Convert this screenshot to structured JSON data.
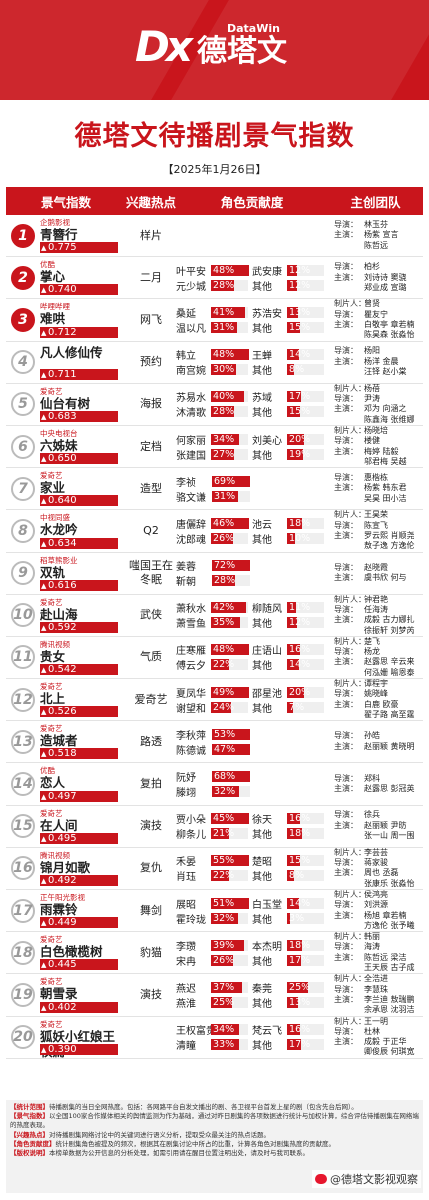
{
  "brand": {
    "logo_en": "DataWin",
    "logo_cn": "德塔文"
  },
  "title": "德塔文待播剧景气指数",
  "date": "【2025年1月26日】",
  "columns": [
    "景气指数",
    "兴趣热点",
    "角色贡献度",
    "主创团队"
  ],
  "team_labels": {
    "director": "导演：",
    "cast": "主演：",
    "producer": "制片人："
  },
  "rows": [
    {
      "rank": "1",
      "platform": "企鹅影视",
      "name": "青簪行",
      "score": "0.775",
      "score_value": 0.775,
      "interest": [
        "样片"
      ],
      "roles": [],
      "director": "林玉芬",
      "cast": [
        "杨紫",
        "宣言"
      ],
      "cast2": [
        "陈哲远"
      ],
      "producer": ""
    },
    {
      "rank": "2",
      "platform": "优酷",
      "name": "掌心",
      "score": "0.740",
      "score_value": 0.74,
      "interest": [
        "二月"
      ],
      "roles": [
        [
          "叶平安",
          "48%",
          48,
          "武安康",
          "12%",
          12
        ],
        [
          "元少城",
          "28%",
          28,
          "其他",
          "12%",
          12
        ]
      ],
      "director": "柏杉",
      "cast": [
        "刘诗诗",
        "窦骁"
      ],
      "cast2": [
        "郑业成",
        "宣璐"
      ],
      "producer": ""
    },
    {
      "rank": "3",
      "platform": "哔哩哔哩",
      "name": "难哄",
      "score": "0.712",
      "score_value": 0.712,
      "interest": [
        "网飞"
      ],
      "roles": [
        [
          "桑延",
          "41%",
          41,
          "苏浩安",
          "13%",
          13
        ],
        [
          "温以凡",
          "31%",
          31,
          "其他",
          "15%",
          15
        ]
      ],
      "director": "瞿友宁",
      "cast": [
        "白敬亭",
        "章若楠"
      ],
      "cast2": [
        "陈昊森",
        "张淼怡"
      ],
      "producer": "曾贤"
    },
    {
      "rank": "4",
      "platform": "",
      "name": "凡人修仙传",
      "score": "0.711",
      "score_value": 0.711,
      "interest": [
        "预约"
      ],
      "roles": [
        [
          "韩立",
          "48%",
          48,
          "王蝉",
          "14%",
          14
        ],
        [
          "南宫婉",
          "30%",
          30,
          "其他",
          "8%",
          8
        ]
      ],
      "director": "杨阳",
      "cast": [
        "杨洋",
        "金晨"
      ],
      "cast2": [
        "汪铎",
        "赵小棠"
      ],
      "producer": ""
    },
    {
      "rank": "5",
      "platform": "爱奇艺",
      "name": "仙台有树",
      "score": "0.683",
      "score_value": 0.683,
      "interest": [
        "海报"
      ],
      "roles": [
        [
          "苏易水",
          "40%",
          40,
          "苏域",
          "17%",
          17
        ],
        [
          "沐清歌",
          "28%",
          28,
          "其他",
          "15%",
          15
        ]
      ],
      "director": "尹涛",
      "cast": [
        "邓为",
        "向涵之"
      ],
      "cast2": [
        "陈鑫海",
        "张维娜"
      ],
      "producer": "杨蓓"
    },
    {
      "rank": "6",
      "platform": "中央电视台",
      "name": "六姊妹",
      "score": "0.650",
      "score_value": 0.65,
      "interest": [
        "定档"
      ],
      "roles": [
        [
          "何家丽",
          "34%",
          34,
          "刘美心",
          "20%",
          20
        ],
        [
          "张建国",
          "27%",
          27,
          "其他",
          "19%",
          19
        ]
      ],
      "director": "楼健",
      "cast": [
        "梅婷",
        "陆毅"
      ],
      "cast2": [
        "邬君梅",
        "吴越"
      ],
      "producer": "杨晓培"
    },
    {
      "rank": "7",
      "platform": "爱奇艺",
      "name": "家业",
      "score": "0.640",
      "score_value": 0.64,
      "interest": [
        "造型"
      ],
      "roles": [
        [
          "李祯",
          "69%",
          69,
          "",
          "",
          0
        ],
        [
          "骆文谦",
          "31%",
          31,
          "",
          "",
          0
        ]
      ],
      "director": "惠楷栋",
      "cast": [
        "杨紫",
        "韩东君"
      ],
      "cast2": [
        "吴昊",
        "田小洁"
      ],
      "producer": ""
    },
    {
      "rank": "8",
      "platform": "中视同盛",
      "name": "水龙吟",
      "score": "0.634",
      "score_value": 0.634,
      "interest": [
        "Q2"
      ],
      "roles": [
        [
          "唐儷辞",
          "46%",
          46,
          "池云",
          "18%",
          18
        ],
        [
          "沈郎魂",
          "26%",
          26,
          "其他",
          "10%",
          10
        ]
      ],
      "director": "陈宣飞",
      "cast": [
        "罗云熙",
        "肖顺尧"
      ],
      "cast2": [
        "敖子逸",
        "方逸伦"
      ],
      "producer": "王昊荣"
    },
    {
      "rank": "9",
      "platform": "稻草熊影业",
      "name": "双轨",
      "score": "0.616",
      "score_value": 0.616,
      "interest": [
        "嗤国王在",
        "冬眠"
      ],
      "roles": [
        [
          "姜蓉",
          "72%",
          72,
          "",
          "",
          0
        ],
        [
          "靳朝",
          "28%",
          28,
          "",
          "",
          0
        ]
      ],
      "director": "赵晓霞",
      "cast": [
        "虞书欣",
        "何与"
      ],
      "cast2": [],
      "producer": ""
    },
    {
      "rank": "10",
      "platform": "爱奇艺",
      "name": "赴山海",
      "score": "0.592",
      "score_value": 0.592,
      "interest": [
        "武侠"
      ],
      "roles": [
        [
          "萧秋水",
          "42%",
          42,
          "柳随风",
          "11%",
          11
        ],
        [
          "萧雪鱼",
          "35%",
          35,
          "其他",
          "12%",
          12
        ]
      ],
      "director": "任海涛",
      "cast": [
        "成毅",
        "古力娜扎"
      ],
      "cast2": [
        "徐振轩",
        "刘梦芮"
      ],
      "producer": "钟君艳"
    },
    {
      "rank": "11",
      "platform": "腾讯视频",
      "name": "贵女",
      "score": "0.542",
      "score_value": 0.542,
      "interest": [
        "气质"
      ],
      "roles": [
        [
          "庄寒雁",
          "48%",
          48,
          "庄语山",
          "16%",
          16
        ],
        [
          "傅云夕",
          "22%",
          22,
          "其他",
          "14%",
          14
        ]
      ],
      "director": "杨龙",
      "cast": [
        "赵露思",
        "辛云来"
      ],
      "cast2": [
        "何泓姗",
        "喻恩泰"
      ],
      "producer": "楚飞"
    },
    {
      "rank": "12",
      "platform": "爱奇艺",
      "name": "北上",
      "score": "0.526",
      "score_value": 0.526,
      "interest": [
        "爱奇艺"
      ],
      "roles": [
        [
          "夏凤华",
          "49%",
          49,
          "邵星池",
          "20%",
          20
        ],
        [
          "谢望和",
          "24%",
          24,
          "其他",
          "7%",
          7
        ]
      ],
      "director": "姚晓峰",
      "cast": [
        "白鹿",
        "欧豪"
      ],
      "cast2": [
        "翟子路",
        "高至霆"
      ],
      "producer": "谭程宇"
    },
    {
      "rank": "13",
      "platform": "爱奇艺",
      "name": "造城者",
      "score": "0.518",
      "score_value": 0.518,
      "interest": [
        "路透"
      ],
      "roles": [
        [
          "李秋萍",
          "53%",
          53,
          "",
          "",
          0
        ],
        [
          "陈德诚",
          "47%",
          47,
          "",
          "",
          0
        ]
      ],
      "director": "孙皓",
      "cast": [
        "赵丽颖",
        "黄晓明"
      ],
      "cast2": [],
      "producer": ""
    },
    {
      "rank": "14",
      "platform": "优酷",
      "name": "恋人",
      "score": "0.497",
      "score_value": 0.497,
      "interest": [
        "复拍"
      ],
      "roles": [
        [
          "阮妤",
          "68%",
          68,
          "",
          "",
          0
        ],
        [
          "滕翊",
          "32%",
          32,
          "",
          "",
          0
        ]
      ],
      "director": "郑科",
      "cast": [
        "赵露思",
        "彭冠英"
      ],
      "cast2": [],
      "producer": ""
    },
    {
      "rank": "15",
      "platform": "爱奇艺",
      "name": "在人间",
      "score": "0.495",
      "score_value": 0.495,
      "interest": [
        "演技"
      ],
      "roles": [
        [
          "贾小朵",
          "45%",
          45,
          "徐天",
          "16%",
          16
        ],
        [
          "柳条儿",
          "21%",
          21,
          "其他",
          "18%",
          18
        ]
      ],
      "director": "徐兵",
      "cast": [
        "赵丽颖",
        "尹昉"
      ],
      "cast2": [
        "张一山",
        "周一围"
      ],
      "producer": ""
    },
    {
      "rank": "16",
      "platform": "腾讯视频",
      "name": "锦月如歌",
      "score": "0.492",
      "score_value": 0.492,
      "interest": [
        "复仇"
      ],
      "roles": [
        [
          "禾晏",
          "55%",
          55,
          "楚昭",
          "15%",
          15
        ],
        [
          "肖珏",
          "22%",
          22,
          "其他",
          "8%",
          8
        ]
      ],
      "director": "蒋家骏",
      "cast": [
        "周也",
        "丞磊"
      ],
      "cast2": [
        "张康乐",
        "张淼怡"
      ],
      "producer": "李芸芸"
    },
    {
      "rank": "17",
      "platform": "正午阳光影视",
      "name": "雨霖铃",
      "score": "0.449",
      "score_value": 0.449,
      "interest": [
        "舞剑"
      ],
      "roles": [
        [
          "展昭",
          "51%",
          51,
          "白玉堂",
          "14%",
          14
        ],
        [
          "霍玲珑",
          "32%",
          32,
          "其他",
          "3%",
          3
        ]
      ],
      "director": "刘洪源",
      "cast": [
        "杨旭",
        "章若楠"
      ],
      "cast2": [
        "方逸伦",
        "张予曦"
      ],
      "producer": "侯鸿亮"
    },
    {
      "rank": "18",
      "platform": "爱奇艺",
      "name": "白色橄榄树",
      "score": "0.445",
      "score_value": 0.445,
      "interest": [
        "豹猫"
      ],
      "roles": [
        [
          "李瓒",
          "39%",
          39,
          "本杰明",
          "18%",
          18
        ],
        [
          "宋冉",
          "26%",
          26,
          "其他",
          "17%",
          17
        ]
      ],
      "director": "海涛",
      "cast": [
        "陈哲远",
        "梁洁"
      ],
      "cast2": [
        "王天辰",
        "古子成"
      ],
      "producer": "韩丽"
    },
    {
      "rank": "19",
      "platform": "爱奇艺",
      "name": "朝雪录",
      "score": "0.402",
      "score_value": 0.402,
      "interest": [
        "演技"
      ],
      "roles": [
        [
          "燕迟",
          "37%",
          37,
          "秦莞",
          "25%",
          25
        ],
        [
          "燕淮",
          "25%",
          25,
          "其他",
          "13%",
          13
        ]
      ],
      "director": "李慧珠",
      "cast": [
        "李兰迪",
        "敖瑞鹏"
      ],
      "cast2": [
        "余承恩",
        "沈羽洁"
      ],
      "producer": "全浩进"
    },
    {
      "rank": "20",
      "platform": "爱奇艺",
      "name": "狐妖小红娘王权篇",
      "score": "0.390",
      "score_value": 0.39,
      "interest": [],
      "roles": [
        [
          "王权富贵",
          "34%",
          34,
          "梵云飞",
          "16%",
          16
        ],
        [
          "清瞳",
          "33%",
          33,
          "其他",
          "17%",
          17
        ]
      ],
      "director": "杜林",
      "cast": [
        "成毅",
        "于正华"
      ],
      "cast2": [
        "卿俊辰",
        "何琪宽"
      ],
      "producer": "王一明"
    }
  ],
  "notes": [
    {
      "label": "【统计范围】",
      "text": "待播剧集的当日全网热度。包括：各网路平台自发文播出的剧、各卫视平台首发上星的剧（包含先台后网）。"
    },
    {
      "label": "【景气指数】",
      "text": "以全国100家合作媒体相关的舆情监测为作为基础，通过对昨日剧集的各项数据进行统计与加权计算，综合评估待播剧集在网络端的热度表现。"
    },
    {
      "label": "【兴趣热点】",
      "text": "对待播剧集网络讨论中的关键词进行语义分析，提取受众最关注的热点话题。"
    },
    {
      "label": "【角色贡献度】",
      "text": "统计剧集角色被提及的频次，根据其在剧集讨论中所占的比重，计算各角色对剧集热度的贡献度。"
    },
    {
      "label": "【版权说明】",
      "text": "本榜单数据为公开信息的分析处理，如需引用请在醒目位置注明出处，请及时与我司联系。"
    }
  ],
  "watermark": "@德塔文影视观察",
  "colors": {
    "accent": "#c9151c",
    "bar_bg": "#efefef"
  }
}
